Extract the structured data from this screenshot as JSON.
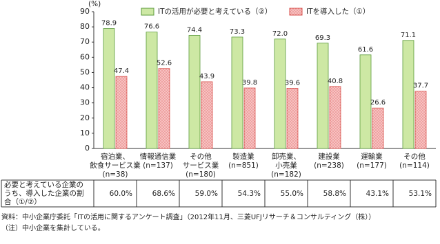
{
  "chart_data": {
    "type": "bar",
    "unit_label": "(%)",
    "categories": [
      "宿泊業、\n飲食サービス業\n(n=38)",
      "情報通信業\n(n=137)",
      "その他\nサービス業\n(n=180)",
      "製造業\n(n=851)",
      "卸売業、\n小売業\n(n=182)",
      "建設業\n(n=238)",
      "運輸業\n(n=177)",
      "その他\n(n=114)"
    ],
    "series": [
      {
        "name": "ITの活用が必要と考えている（②）",
        "color": "#cde8a4",
        "values": [
          78.9,
          76.6,
          74.4,
          73.3,
          72.0,
          69.3,
          61.6,
          71.1
        ],
        "value_labels": [
          "78.9",
          "76.6",
          "74.4",
          "73.3",
          "72.0",
          "69.3",
          "61.6",
          "71.1"
        ]
      },
      {
        "name": "ITを導入した（①）",
        "color": "#f7c2c2",
        "values": [
          47.4,
          52.6,
          43.9,
          39.8,
          39.6,
          40.8,
          26.6,
          37.7
        ]
      }
    ],
    "ylim": [
      0,
      90
    ],
    "yticks": [
      0,
      10,
      20,
      30,
      40,
      50,
      60,
      70,
      80,
      90
    ],
    "table": {
      "header": "必要と考えている企業の\nうち、導入した企業の割\n合（①/②）",
      "values": [
        "60.0%",
        "68.6%",
        "59.0%",
        "54.3%",
        "55.0%",
        "58.8%",
        "43.1%",
        "53.1%"
      ]
    },
    "notes": [
      "資料：中小企業庁委託「ITの活用に関するアンケート調査」（2012年11月、三菱UFJリサーチ＆コンサルティング（株））",
      "（注）中小企業を集計している。"
    ]
  }
}
